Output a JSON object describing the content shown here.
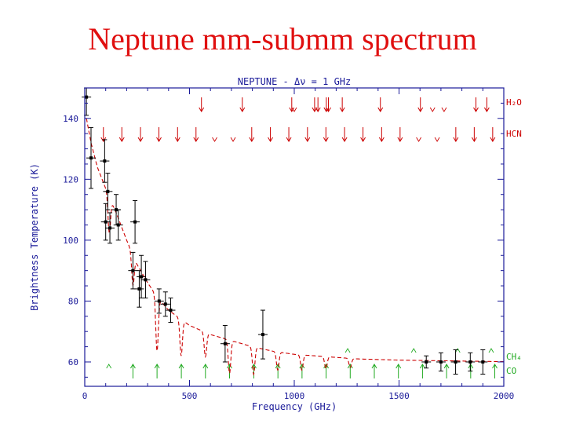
{
  "slide": {
    "title": "Neptune mm-submm spectrum"
  },
  "colors": {
    "title": "#e01010",
    "axes": "#1a1a99",
    "model": "#cc0000",
    "arrows_red": "#cc0000",
    "arrows_green": "#22aa22",
    "points": "#000000"
  },
  "chart_data": {
    "type": "scatter",
    "title": "NEPTUNE - Δν = 1 GHz",
    "xlabel": "Frequency (GHz)",
    "ylabel": "Brightness Temperature (K)",
    "xlim": [
      0,
      2000
    ],
    "ylim": [
      52,
      150
    ],
    "xticks": [
      0,
      500,
      1000,
      1500,
      2000
    ],
    "yticks": [
      60,
      80,
      100,
      120,
      140
    ],
    "grid": false,
    "species_labels": {
      "h2o": "H₂O",
      "hcn": "HCN",
      "ch4": "CH₄",
      "co": "CO"
    },
    "observations": [
      {
        "x": 8,
        "y": 147,
        "yerr": 6
      },
      {
        "x": 30,
        "y": 127,
        "yerr": 10
      },
      {
        "x": 95,
        "y": 126,
        "yerr": 7
      },
      {
        "x": 100,
        "y": 106,
        "yerr": 6
      },
      {
        "x": 110,
        "y": 116,
        "yerr": 6
      },
      {
        "x": 120,
        "y": 104,
        "yerr": 5
      },
      {
        "x": 150,
        "y": 110,
        "yerr": 5
      },
      {
        "x": 160,
        "y": 105,
        "yerr": 5
      },
      {
        "x": 230,
        "y": 90,
        "yerr": 6
      },
      {
        "x": 240,
        "y": 106,
        "yerr": 7
      },
      {
        "x": 260,
        "y": 84,
        "yerr": 6
      },
      {
        "x": 270,
        "y": 88,
        "yerr": 7
      },
      {
        "x": 290,
        "y": 87,
        "yerr": 6
      },
      {
        "x": 355,
        "y": 80,
        "yerr": 4
      },
      {
        "x": 385,
        "y": 79,
        "yerr": 4
      },
      {
        "x": 410,
        "y": 77,
        "yerr": 4
      },
      {
        "x": 670,
        "y": 66,
        "yerr": 6
      },
      {
        "x": 850,
        "y": 69,
        "yerr": 8
      },
      {
        "x": 1630,
        "y": 60,
        "yerr": 2
      },
      {
        "x": 1700,
        "y": 60,
        "yerr": 3
      },
      {
        "x": 1770,
        "y": 60,
        "yerr": 4
      },
      {
        "x": 1840,
        "y": 60,
        "yerr": 3
      },
      {
        "x": 1900,
        "y": 60,
        "yerr": 4
      }
    ],
    "model_curve": {
      "x": [
        8,
        30,
        60,
        100,
        150,
        200,
        250,
        300,
        350,
        400,
        500,
        600,
        700,
        800,
        900,
        1000,
        1100,
        1200,
        1300,
        1400,
        1500,
        1600,
        1700,
        1800,
        1900,
        2000
      ],
      "y": [
        140,
        132,
        124,
        117,
        109,
        100,
        92,
        86,
        81,
        77,
        72,
        69,
        67,
        65,
        63.5,
        62.5,
        62,
        61.5,
        61,
        60.8,
        60.6,
        60.5,
        60.4,
        60.3,
        60.2,
        60.1
      ]
    },
    "model_absorption_lines": [
      {
        "x": 117,
        "depth": 12
      },
      {
        "x": 230,
        "depth": 10
      },
      {
        "x": 345,
        "depth": 18
      },
      {
        "x": 460,
        "depth": 12
      },
      {
        "x": 576,
        "depth": 8
      },
      {
        "x": 691,
        "depth": 11
      },
      {
        "x": 806,
        "depth": 9
      },
      {
        "x": 921,
        "depth": 6
      },
      {
        "x": 1036,
        "depth": 5
      },
      {
        "x": 1151,
        "depth": 4
      },
      {
        "x": 1267,
        "depth": 3
      }
    ],
    "h2o_lines": [
      557,
      752,
      988,
      1097,
      1113,
      1153,
      1163,
      1229,
      1411,
      1602,
      1867,
      1919
    ],
    "h2o_weak": [
      1000,
      1660,
      1715
    ],
    "hcn_lines": [
      89,
      177,
      266,
      354,
      443,
      531,
      797,
      886,
      974,
      1063,
      1151,
      1240,
      1328,
      1417,
      1505,
      1771,
      1859,
      1947
    ],
    "hcn_weak": [
      620,
      708,
      1594,
      1682
    ],
    "co_lines": [
      230,
      345,
      461,
      576,
      691,
      807,
      922,
      1037,
      1152,
      1267,
      1382,
      1497,
      1612,
      1727,
      1842,
      1957
    ],
    "co_weak": [
      115
    ],
    "ch4_lines": [
      1255,
      1570,
      1780,
      1940
    ]
  }
}
